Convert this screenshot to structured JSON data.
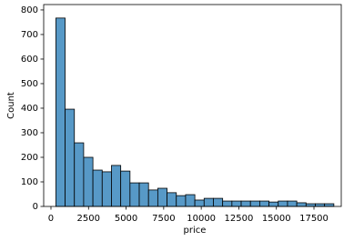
{
  "chart_data": {
    "type": "histogram",
    "xlabel": "price",
    "ylabel": "Count",
    "color": "#5799c7",
    "bins": [
      326,
      942.6,
      1559.1,
      2175.7,
      2792.3,
      3408.8,
      4025.4,
      4642.0,
      5258.5,
      5875.1,
      6491.7,
      7108.2,
      7724.8,
      8341.4,
      8957.9,
      9574.5,
      10191.1,
      10807.6,
      11424.2,
      12040.8,
      12657.3,
      13273.9,
      13890.5,
      14507.0,
      15123.6,
      15740.2,
      16356.7,
      16973.3,
      17589.9,
      18206.4,
      18823
    ],
    "values": [
      767,
      396,
      259,
      200,
      148,
      141,
      167,
      144,
      96,
      96,
      67,
      74,
      56,
      44,
      48,
      26,
      33,
      33,
      22,
      22,
      22,
      22,
      22,
      18,
      22,
      22,
      15,
      11,
      11,
      11
    ],
    "xlim": [
      -484,
      19316
    ],
    "xticks": [
      0,
      2500,
      5000,
      7500,
      10000,
      12500,
      15000,
      17500
    ],
    "ylim": [
      0,
      822
    ],
    "yticks": [
      0,
      100,
      200,
      300,
      400,
      500,
      600,
      700,
      800
    ]
  }
}
